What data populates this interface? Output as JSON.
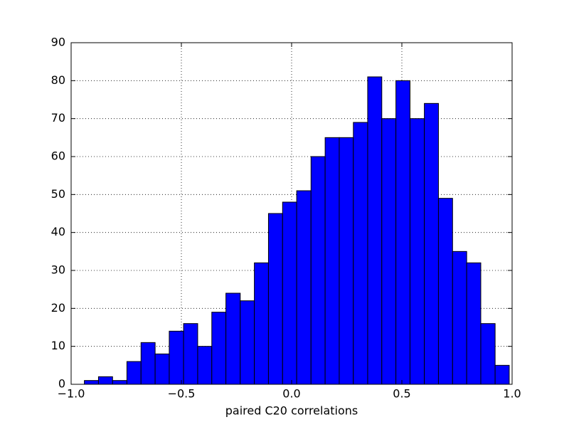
{
  "chart_data": {
    "type": "histogram",
    "x_label": "paired C20 correlations",
    "bins": [
      -0.94,
      -0.876,
      -0.812,
      -0.747,
      -0.683,
      -0.619,
      -0.555,
      -0.49,
      -0.426,
      -0.362,
      -0.298,
      -0.233,
      -0.169,
      -0.105,
      -0.041,
      0.023,
      0.088,
      0.152,
      0.216,
      0.28,
      0.345,
      0.409,
      0.473,
      0.537,
      0.602,
      0.666,
      0.73,
      0.794,
      0.858,
      0.923,
      0.987
    ],
    "values": [
      1,
      2,
      1,
      6,
      11,
      8,
      14,
      16,
      10,
      19,
      24,
      22,
      32,
      45,
      48,
      51,
      60,
      65,
      65,
      69,
      81,
      70,
      80,
      70,
      74,
      49,
      35,
      32,
      16,
      5
    ],
    "color": "#0000ff",
    "xlim": [
      -1.0,
      1.0
    ],
    "xticks": [
      {
        "value": -1.0,
        "label": "−1.0"
      },
      {
        "value": -0.5,
        "label": "−0.5"
      },
      {
        "value": 0.0,
        "label": "0.0"
      },
      0.5,
      {
        "value": 1.0,
        "label": "1.0"
      }
    ],
    "ylim": [
      0,
      90
    ],
    "yticks": [
      0,
      10,
      20,
      30,
      40,
      50,
      60,
      70,
      80,
      90
    ],
    "grid": true
  }
}
